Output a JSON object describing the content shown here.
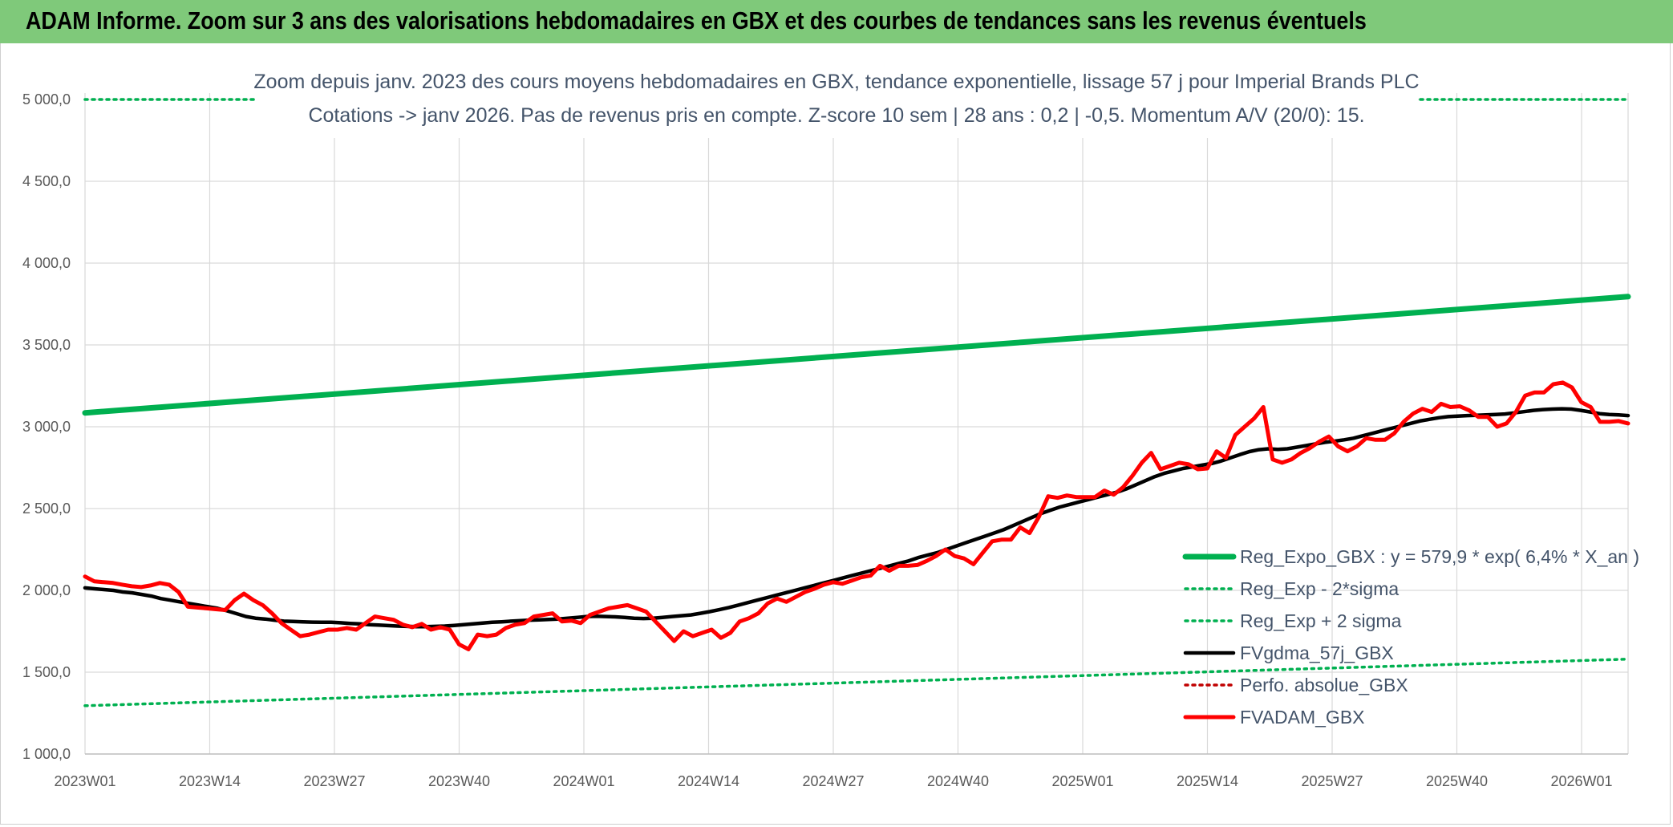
{
  "banner": {
    "title": "ADAM Informe. Zoom sur 3 ans des valorisations hebdomadaires en GBX et des courbes de tendances sans les revenus éventuels"
  },
  "chart_data": {
    "type": "line",
    "title": "Zoom depuis janv. 2023 des cours moyens hebdomadaires en GBX, tendance exponentielle, lissage 57 j pour Imperial Brands PLC",
    "subtitle": "Cotations -> janv 2026. Pas de revenus pris en compte. Z-score 10 sem | 28 ans : 0,2 | -0,5. Momentum A/V (20/0): 15.",
    "ylim": [
      1000,
      5000
    ],
    "y_ticks": [
      "5 000,0",
      "4 500,0",
      "4 000,0",
      "3 500,0",
      "3 000,0",
      "2 500,0",
      "2 000,0",
      "1 500,0",
      "1 000,0"
    ],
    "x_ticks": [
      "2023W01",
      "2023W14",
      "2023W27",
      "2023W40",
      "2024W01",
      "2024W14",
      "2024W27",
      "2024W40",
      "2025W01",
      "2025W14",
      "2025W27",
      "2025W40",
      "2026W01"
    ],
    "grid": true,
    "legend_position": "bottom-right",
    "series": [
      {
        "name": "Reg_Expo_GBX : y = 579,9 * exp( 6,4% *  X_an )",
        "color": "#00b050",
        "style": "solid",
        "values": [
          3085,
          3795
        ]
      },
      {
        "name": "Reg_Exp - 2*sigma",
        "color": "#00b050",
        "style": "dotted",
        "values": [
          1295,
          1580
        ]
      },
      {
        "name": "Reg_Exp + 2 sigma",
        "color": "#00b050",
        "style": "dotted",
        "values": [
          5000,
          5000
        ]
      },
      {
        "name": "FVgdma_57j_GBX",
        "color": "#000000",
        "style": "solid",
        "values": [
          2015,
          2010,
          2005,
          2000,
          1990,
          1985,
          1975,
          1965,
          1950,
          1940,
          1930,
          1920,
          1910,
          1900,
          1890,
          1875,
          1858,
          1840,
          1830,
          1825,
          1818,
          1812,
          1810,
          1808,
          1806,
          1805,
          1805,
          1802,
          1798,
          1795,
          1790,
          1788,
          1785,
          1782,
          1780,
          1778,
          1778,
          1780,
          1782,
          1786,
          1790,
          1795,
          1800,
          1805,
          1808,
          1812,
          1815,
          1818,
          1820,
          1822,
          1825,
          1830,
          1835,
          1840,
          1842,
          1840,
          1838,
          1835,
          1830,
          1828,
          1830,
          1835,
          1840,
          1845,
          1850,
          1860,
          1870,
          1882,
          1895,
          1910,
          1925,
          1940,
          1955,
          1970,
          1985,
          2000,
          2015,
          2030,
          2045,
          2060,
          2075,
          2090,
          2105,
          2120,
          2135,
          2150,
          2165,
          2180,
          2200,
          2215,
          2230,
          2250,
          2270,
          2290,
          2310,
          2330,
          2350,
          2370,
          2395,
          2420,
          2445,
          2470,
          2490,
          2510,
          2525,
          2540,
          2555,
          2570,
          2585,
          2600,
          2620,
          2645,
          2670,
          2695,
          2715,
          2730,
          2745,
          2755,
          2765,
          2775,
          2790,
          2810,
          2830,
          2848,
          2860,
          2865,
          2862,
          2865,
          2875,
          2885,
          2895,
          2905,
          2912,
          2920,
          2930,
          2945,
          2960,
          2975,
          2990,
          3005,
          3020,
          3035,
          3045,
          3055,
          3062,
          3065,
          3068,
          3070,
          3072,
          3075,
          3078,
          3085,
          3092,
          3100,
          3105,
          3108,
          3110,
          3108,
          3100,
          3090,
          3080,
          3075,
          3072,
          3068
        ]
      },
      {
        "name": "Perfo. absolue_GBX",
        "color": "#c00000",
        "style": "dotted",
        "values": []
      },
      {
        "name": "FVADAM_GBX",
        "color": "#ff0000",
        "style": "solid",
        "values": [
          2085,
          2055,
          2050,
          2045,
          2035,
          2025,
          2020,
          2030,
          2045,
          2035,
          1990,
          1900,
          1895,
          1890,
          1885,
          1880,
          1940,
          1980,
          1940,
          1910,
          1860,
          1800,
          1760,
          1720,
          1730,
          1745,
          1760,
          1760,
          1770,
          1760,
          1800,
          1840,
          1830,
          1820,
          1790,
          1775,
          1795,
          1760,
          1775,
          1760,
          1670,
          1640,
          1730,
          1720,
          1730,
          1770,
          1790,
          1800,
          1840,
          1850,
          1860,
          1810,
          1815,
          1800,
          1850,
          1870,
          1890,
          1900,
          1910,
          1890,
          1870,
          1810,
          1750,
          1690,
          1750,
          1720,
          1740,
          1760,
          1710,
          1740,
          1810,
          1830,
          1860,
          1920,
          1950,
          1930,
          1960,
          1990,
          2010,
          2035,
          2050,
          2040,
          2060,
          2080,
          2090,
          2150,
          2120,
          2150,
          2150,
          2155,
          2180,
          2210,
          2250,
          2210,
          2195,
          2160,
          2230,
          2300,
          2310,
          2310,
          2385,
          2350,
          2450,
          2575,
          2565,
          2580,
          2570,
          2570,
          2570,
          2610,
          2585,
          2630,
          2700,
          2780,
          2840,
          2740,
          2760,
          2780,
          2770,
          2740,
          2745,
          2850,
          2810,
          2950,
          3000,
          3050,
          3120,
          2800,
          2780,
          2800,
          2840,
          2870,
          2910,
          2940,
          2880,
          2850,
          2880,
          2930,
          2920,
          2920,
          2960,
          3030,
          3080,
          3110,
          3090,
          3140,
          3120,
          3125,
          3100,
          3060,
          3060,
          3000,
          3020,
          3090,
          3190,
          3210,
          3210,
          3260,
          3270,
          3240,
          3150,
          3120,
          3030,
          3030,
          3035,
          3020
        ]
      }
    ]
  }
}
